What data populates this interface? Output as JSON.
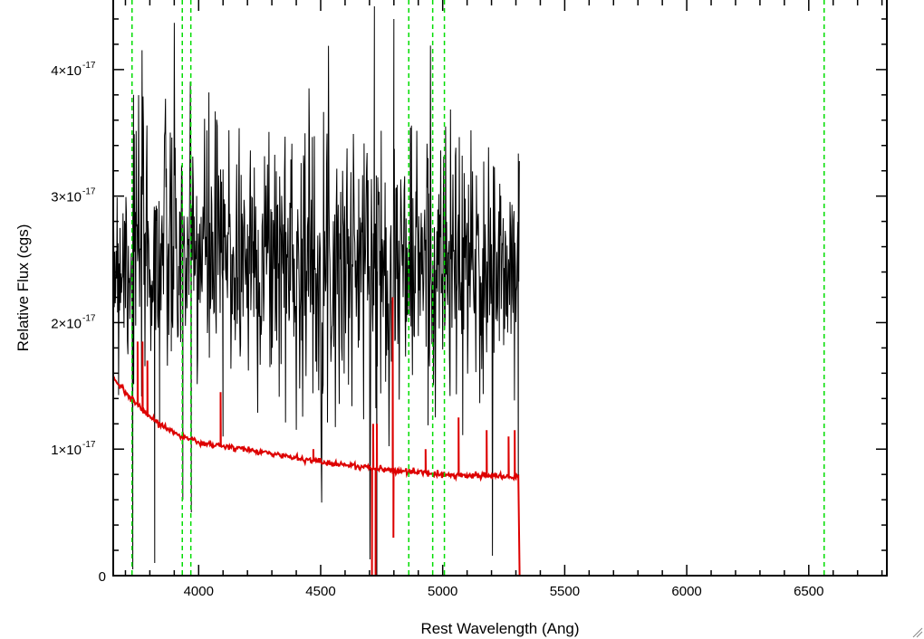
{
  "chart_data": {
    "type": "line",
    "title": "",
    "xlabel": "Rest Wavelength (Ang)",
    "ylabel": "Relative Flux (cgs)",
    "xlim": [
      3650,
      6820
    ],
    "ylim": [
      0,
      4.55e-17
    ],
    "x_ticks": [
      4000,
      4500,
      5000,
      5500,
      6000,
      6500
    ],
    "y_ticks": [
      {
        "value": 0,
        "mantissa": "0",
        "exponent": ""
      },
      {
        "value": 1e-17,
        "mantissa": "1×10",
        "exponent": "-17"
      },
      {
        "value": 2e-17,
        "mantissa": "2×10",
        "exponent": "-17"
      },
      {
        "value": 3e-17,
        "mantissa": "3×10",
        "exponent": "-17"
      },
      {
        "value": 4e-17,
        "mantissa": "4×10",
        "exponent": "-17"
      }
    ],
    "grid": false,
    "legend": "none",
    "vertical_markers": {
      "color": "#00dd00",
      "style": "dashed",
      "x": [
        3727,
        3933,
        3968,
        4861,
        4959,
        5007,
        6563
      ]
    },
    "series": [
      {
        "color": "#000000",
        "style": "noisy-spectrum",
        "x_range": [
          3650,
          5315
        ],
        "mean_profile": [
          [
            3650,
            2.55e-17
          ],
          [
            4000,
            2.55e-17
          ],
          [
            4500,
            2.5e-17
          ],
          [
            5000,
            2.45e-17
          ],
          [
            5315,
            2.35e-17
          ]
        ],
        "noise_sigma": 5.5e-18,
        "features": [
          [
            3730,
            5e-19
          ],
          [
            3733,
            3.8e-17
          ],
          [
            3820,
            1e-18
          ],
          [
            3840,
            1.2e-17
          ],
          [
            3935,
            6e-18
          ],
          [
            3970,
            5e-18
          ],
          [
            4100,
            1.1e-17
          ],
          [
            4720,
            4.5e-17
          ],
          [
            4730,
            0.0
          ],
          [
            4800,
            4.4e-17
          ],
          [
            4940,
            3.3e-17
          ],
          [
            5310,
            6e-18
          ]
        ]
      },
      {
        "color": "#dd0000",
        "style": "model-continuum",
        "points": [
          [
            3650,
            1.57e-17
          ],
          [
            3700,
            1.45e-17
          ],
          [
            3800,
            1.25e-17
          ],
          [
            3900,
            1.13e-17
          ],
          [
            4000,
            1.05e-17
          ],
          [
            4250,
            9.8e-18
          ],
          [
            4500,
            9e-18
          ],
          [
            4750,
            8.4e-18
          ],
          [
            5000,
            8e-18
          ],
          [
            5310,
            7.8e-18
          ],
          [
            5315,
            0
          ],
          [
            6820,
            0
          ]
        ],
        "spikes": [
          [
            3750,
            1.85e-17
          ],
          [
            3770,
            1.85e-17
          ],
          [
            3790,
            1.7e-17
          ],
          [
            4090,
            1.45e-17
          ],
          [
            4470,
            1e-17
          ],
          [
            4710,
            0.0
          ],
          [
            4715,
            1.2e-17
          ],
          [
            4725,
            0.0
          ],
          [
            4730,
            1.2e-17
          ],
          [
            4795,
            2.2e-17
          ],
          [
            4798,
            3e-18
          ],
          [
            4930,
            1e-17
          ],
          [
            5065,
            1.25e-17
          ],
          [
            5180,
            1.15e-17
          ],
          [
            5270,
            1.1e-17
          ],
          [
            5295,
            1.15e-17
          ]
        ]
      }
    ]
  }
}
